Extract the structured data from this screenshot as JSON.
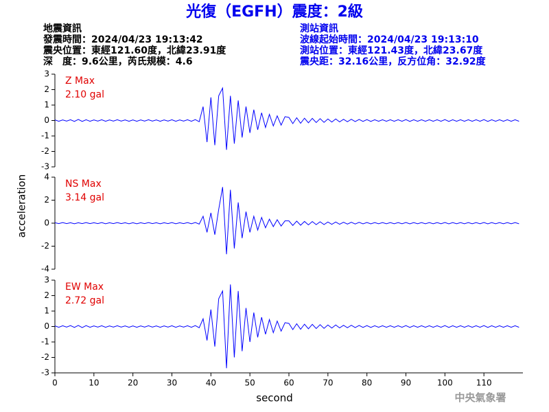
{
  "title": "光復（EGFH）震度：2級",
  "event_info": {
    "heading": "地震資訊",
    "time": "發震時間：2024/04/23 19:13:42",
    "epicenter": "震央位置：東經121.60度，北緯23.91度",
    "depth": "深　度：9.6公里，芮氏規模：4.6"
  },
  "station_info": {
    "heading": "測站資訊",
    "start_time": "波線起始時間：2024/04/23 19:13:10",
    "location": "測站位置：東經121.43度，北緯23.67度",
    "distance": "震央距：32.16公里，反方位角：32.92度"
  },
  "ylabel": "acceleration",
  "xlabel": "second",
  "agency": "中央氣象署",
  "xlim": [
    0,
    120
  ],
  "xticks": [
    0,
    10,
    20,
    30,
    40,
    50,
    60,
    70,
    80,
    90,
    100,
    110
  ],
  "x": [
    0,
    1,
    2,
    3,
    4,
    5,
    6,
    7,
    8,
    9,
    10,
    11,
    12,
    13,
    14,
    15,
    16,
    17,
    18,
    19,
    20,
    21,
    22,
    23,
    24,
    25,
    26,
    27,
    28,
    29,
    30,
    31,
    32,
    33,
    34,
    35,
    36,
    37,
    38,
    39,
    40,
    41,
    42,
    43,
    44,
    45,
    46,
    47,
    48,
    49,
    50,
    51,
    52,
    53,
    54,
    55,
    56,
    57,
    58,
    59,
    60,
    61,
    62,
    63,
    64,
    65,
    66,
    67,
    68,
    69,
    70,
    71,
    72,
    73,
    74,
    75,
    76,
    77,
    78,
    79,
    80,
    81,
    82,
    83,
    84,
    85,
    86,
    87,
    88,
    89,
    90,
    91,
    92,
    93,
    94,
    95,
    96,
    97,
    98,
    99,
    100,
    101,
    102,
    103,
    104,
    105,
    106,
    107,
    108,
    109,
    110,
    111,
    112,
    113,
    114,
    115,
    116,
    117,
    118,
    119
  ],
  "chart_data": [
    {
      "type": "line",
      "label": "Z Max",
      "max_label": "2.10 gal",
      "color": "#0000ff",
      "ylim": [
        -3,
        3
      ],
      "yticks": [
        -3,
        -2,
        -1,
        0,
        1,
        2,
        3
      ],
      "values": [
        0.04,
        -0.05,
        0.04,
        -0.04,
        0.05,
        -0.06,
        0.07,
        -0.06,
        0.05,
        -0.05,
        0.04,
        -0.04,
        0.05,
        -0.05,
        0.04,
        -0.04,
        0.05,
        -0.04,
        0.04,
        -0.05,
        0.04,
        -0.05,
        0.04,
        -0.04,
        0.05,
        -0.04,
        0.04,
        -0.05,
        0.04,
        -0.04,
        0.05,
        -0.05,
        0.04,
        -0.04,
        0.05,
        -0.05,
        0.06,
        -0.08,
        0.9,
        -1.4,
        1.5,
        -1.6,
        1.6,
        2.1,
        -1.9,
        1.6,
        -1.5,
        1.3,
        -1.1,
        0.9,
        -0.8,
        0.7,
        -0.6,
        0.5,
        -0.45,
        0.4,
        -0.35,
        0.3,
        -0.3,
        0.25,
        0.2,
        -0.2,
        0.18,
        -0.18,
        0.15,
        -0.15,
        0.14,
        -0.13,
        0.12,
        -0.12,
        0.1,
        -0.1,
        0.1,
        -0.09,
        0.08,
        -0.08,
        0.08,
        -0.07,
        0.07,
        -0.06,
        0.06,
        -0.06,
        0.05,
        -0.05,
        0.05,
        -0.05,
        0.05,
        -0.05,
        0.05,
        -0.05,
        0.06,
        -0.06,
        0.05,
        -0.05,
        0.05,
        -0.05,
        0.05,
        -0.05,
        0.05,
        -0.05,
        0.06,
        -0.06,
        0.05,
        -0.05,
        0.05,
        -0.05,
        0.05,
        -0.05,
        0.05,
        -0.05,
        0.06,
        -0.06,
        0.05,
        -0.05,
        0.05,
        -0.05,
        0.05,
        -0.05,
        0.05,
        -0.05
      ]
    },
    {
      "type": "line",
      "label": "NS Max",
      "max_label": "3.14 gal",
      "color": "#0000ff",
      "ylim": [
        -4,
        4
      ],
      "yticks": [
        -4,
        -2,
        0,
        2,
        4
      ],
      "values": [
        0.04,
        -0.04,
        0.05,
        -0.04,
        0.04,
        -0.05,
        0.04,
        -0.04,
        0.05,
        -0.04,
        0.04,
        -0.04,
        0.05,
        -0.05,
        0.04,
        -0.04,
        0.05,
        -0.04,
        0.04,
        -0.05,
        0.04,
        -0.05,
        0.04,
        -0.04,
        0.05,
        -0.04,
        0.04,
        -0.05,
        0.04,
        -0.04,
        0.05,
        -0.05,
        0.04,
        -0.04,
        0.05,
        -0.05,
        0.06,
        -0.08,
        0.6,
        -0.8,
        0.9,
        -1.0,
        1.2,
        3.14,
        -2.7,
        2.9,
        -2.2,
        1.8,
        -1.3,
        1.0,
        -0.8,
        0.6,
        -0.6,
        0.5,
        -0.4,
        0.35,
        -0.3,
        0.3,
        -0.25,
        0.2,
        0.2,
        -0.2,
        0.18,
        -0.18,
        0.15,
        -0.15,
        0.14,
        -0.13,
        0.12,
        -0.12,
        0.1,
        -0.1,
        0.1,
        -0.09,
        0.08,
        -0.08,
        0.08,
        -0.07,
        0.07,
        -0.06,
        0.06,
        -0.06,
        0.05,
        -0.05,
        0.05,
        -0.05,
        0.05,
        -0.05,
        0.05,
        -0.05,
        0.06,
        -0.06,
        0.05,
        -0.05,
        0.05,
        -0.05,
        0.05,
        -0.05,
        0.05,
        -0.05,
        0.06,
        -0.06,
        0.05,
        -0.05,
        0.05,
        -0.05,
        0.05,
        -0.05,
        0.05,
        -0.05,
        0.06,
        -0.06,
        0.05,
        -0.05,
        0.05,
        -0.05,
        0.05,
        -0.05,
        0.05,
        -0.05
      ]
    },
    {
      "type": "line",
      "label": "EW Max",
      "max_label": "2.72 gal",
      "color": "#0000ff",
      "ylim": [
        -3,
        3
      ],
      "yticks": [
        -3,
        -2,
        -1,
        0,
        1,
        2,
        3
      ],
      "values": [
        0.04,
        -0.05,
        0.05,
        -0.04,
        0.06,
        -0.06,
        0.07,
        -0.07,
        0.06,
        -0.05,
        0.04,
        -0.04,
        0.05,
        -0.05,
        0.04,
        -0.04,
        0.05,
        -0.04,
        0.04,
        -0.05,
        0.04,
        -0.05,
        0.04,
        -0.04,
        0.05,
        -0.04,
        0.04,
        -0.05,
        0.04,
        -0.04,
        0.05,
        -0.05,
        0.04,
        -0.04,
        0.05,
        -0.05,
        0.06,
        -0.08,
        0.5,
        -0.9,
        1.1,
        -1.3,
        1.8,
        2.3,
        -2.7,
        2.72,
        -2.0,
        2.3,
        -1.6,
        1.2,
        -1.0,
        0.9,
        -0.7,
        0.6,
        -0.5,
        0.45,
        -0.4,
        0.35,
        -0.3,
        0.25,
        0.2,
        -0.2,
        0.18,
        -0.18,
        0.15,
        -0.15,
        0.14,
        -0.13,
        0.12,
        -0.12,
        0.1,
        -0.1,
        0.1,
        -0.09,
        0.08,
        -0.08,
        0.08,
        -0.07,
        0.07,
        -0.06,
        0.06,
        -0.06,
        0.05,
        -0.05,
        0.05,
        -0.05,
        0.05,
        -0.05,
        0.05,
        -0.05,
        0.06,
        -0.06,
        0.05,
        -0.05,
        0.05,
        -0.05,
        0.05,
        -0.05,
        0.05,
        -0.05,
        0.06,
        -0.06,
        0.05,
        -0.05,
        0.05,
        -0.05,
        0.05,
        -0.05,
        0.05,
        -0.05,
        0.06,
        -0.06,
        0.05,
        -0.05,
        0.05,
        -0.05,
        0.05,
        -0.05,
        0.05,
        -0.05
      ]
    }
  ]
}
